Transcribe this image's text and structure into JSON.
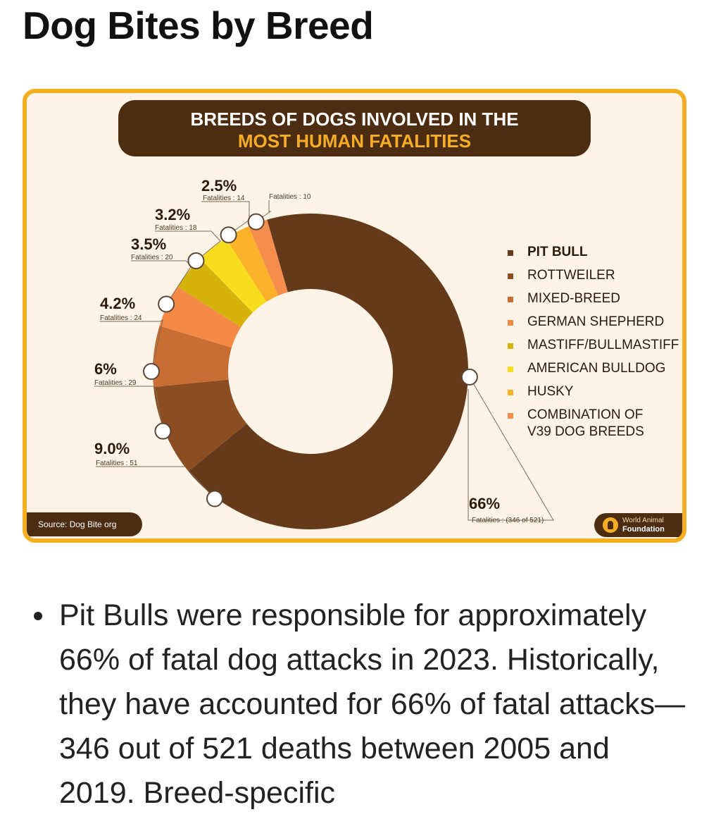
{
  "page": {
    "title": "Dog Bites by Breed",
    "body_text": "Pit Bulls were responsible for approximately 66% of fatal dog attacks in 2023. Historically, they have accounted for 66% of fatal attacks—346 out of 521 deaths between 2005 and 2019. Breed-specific"
  },
  "infographic": {
    "banner_line1": "BREEDS OF DOGS INVOLVED IN THE",
    "banner_line2": "MOST HUMAN FATALITIES",
    "source": "Source: Dog Bite org",
    "brand_line1": "World Animal",
    "brand_line2": "Foundation",
    "colors": {
      "background": "#fdf4e7",
      "border": "#f5ae22",
      "banner": "#4d2d11",
      "accent": "#f5ad26"
    }
  },
  "chart_data": {
    "type": "pie",
    "donut": true,
    "title": "BREEDS OF DOGS INVOLVED IN THE MOST HUMAN FATALITIES",
    "categories": [
      "PIT BULL",
      "ROTTWEILER",
      "MIXED-BREED",
      "GERMAN SHEPHERD",
      "MASTIFF/BULLMASTIFF",
      "AMERICAN BULLDOG",
      "HUSKY",
      "COMBINATION OF\nV39 DOG BREEDS"
    ],
    "values": [
      66,
      9.0,
      6,
      4.2,
      3.5,
      3.2,
      2.5,
      1.9
    ],
    "value_labels": [
      "66%",
      "9.0%",
      "6%",
      "4.2%",
      "3.5%",
      "3.2%",
      "2.5%",
      ""
    ],
    "fatality_labels": [
      "Fatalities : (346 of 521)",
      "Fatalities : 51",
      "Fatalities : 29",
      "Fatalities : 24",
      "Fatalities : 20",
      "Fatalities : 18",
      "Fatalities : 14",
      "Fatalities : 10"
    ],
    "colors": [
      "#653a1a",
      "#8b4e22",
      "#c86d33",
      "#f58a47",
      "#d6b20d",
      "#f8dc1e",
      "#fbb22a",
      "#f58d4c"
    ],
    "legend_position": "right"
  }
}
